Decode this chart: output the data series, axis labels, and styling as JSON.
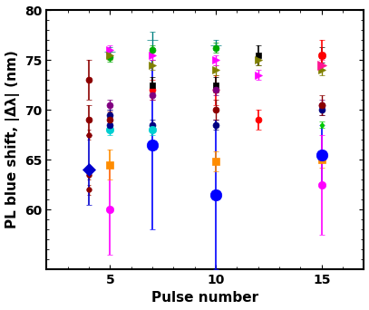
{
  "title": "",
  "xlabel": "Pulse number",
  "ylabel": "PL blue shift, |Δλ| (nm)",
  "xlim": [
    2,
    17
  ],
  "ylim": [
    54,
    80
  ],
  "yticks": [
    60,
    65,
    70,
    75,
    80
  ],
  "xticks": [
    5,
    10,
    15
  ],
  "series": [
    {
      "label": "darkred_col1_top",
      "x": [
        4
      ],
      "y": [
        73.0
      ],
      "yerr": [
        2.0
      ],
      "color": "#8B0000",
      "marker": "o",
      "ms": 5,
      "elinewidth": 1.2,
      "capsize": 2
    },
    {
      "label": "darkred_col1_mid",
      "x": [
        4
      ],
      "y": [
        69.0
      ],
      "yerr": [
        1.5
      ],
      "color": "#8B0000",
      "marker": "o",
      "ms": 5,
      "elinewidth": 1.2,
      "capsize": 2
    },
    {
      "label": "darkred_col1_low1",
      "x": [
        4
      ],
      "y": [
        67.5
      ],
      "yerr": [
        0.5
      ],
      "color": "#8B0000",
      "marker": "o",
      "ms": 4,
      "elinewidth": 1.0,
      "capsize": 1.5
    },
    {
      "label": "darkred_col1_low2",
      "x": [
        4
      ],
      "y": [
        63.5
      ],
      "yerr": [
        0.5
      ],
      "color": "#8B0000",
      "marker": "o",
      "ms": 4,
      "elinewidth": 1.0,
      "capsize": 1.5
    },
    {
      "label": "darkred_col1_low3",
      "x": [
        4
      ],
      "y": [
        62.0
      ],
      "yerr": [
        0.5
      ],
      "color": "#8B0000",
      "marker": "o",
      "ms": 4,
      "elinewidth": 1.0,
      "capsize": 1.5
    },
    {
      "label": "blue_diamond_col1",
      "x": [
        4
      ],
      "y": [
        64.0
      ],
      "yerr": [
        3.5
      ],
      "color": "#0000CD",
      "marker": "D",
      "ms": 7,
      "elinewidth": 1.2,
      "capsize": 2
    },
    {
      "label": "magenta_big_circle_col2",
      "x": [
        5
      ],
      "y": [
        60.0
      ],
      "yerr": [
        4.5
      ],
      "color": "#FF00FF",
      "marker": "o",
      "ms": 6,
      "elinewidth": 1.2,
      "capsize": 2
    },
    {
      "label": "orange_square_col2",
      "x": [
        5
      ],
      "y": [
        64.5
      ],
      "yerr": [
        1.5
      ],
      "color": "#FF8C00",
      "marker": "s",
      "ms": 6,
      "elinewidth": 1.2,
      "capsize": 2
    },
    {
      "label": "teal_plus_col2",
      "x": [
        5
      ],
      "y": [
        75.8
      ],
      "yerr": [
        0.5
      ],
      "color": "#008080",
      "marker": "+",
      "ms": 8,
      "elinewidth": 1.0,
      "capsize": 2
    },
    {
      "label": "green_circle_col2",
      "x": [
        5
      ],
      "y": [
        75.3
      ],
      "yerr": [
        0.5
      ],
      "color": "#00AA00",
      "marker": "o",
      "ms": 5,
      "elinewidth": 1.0,
      "capsize": 2
    },
    {
      "label": "magenta_tri_col2",
      "x": [
        5
      ],
      "y": [
        76.0
      ],
      "yerr": [
        0.5
      ],
      "color": "#FF00FF",
      "marker": ">",
      "ms": 6,
      "elinewidth": 1.0,
      "capsize": 2
    },
    {
      "label": "olive_tri_col2",
      "x": [
        5
      ],
      "y": [
        75.5
      ],
      "yerr": [
        0.5
      ],
      "color": "#808000",
      "marker": ">",
      "ms": 6,
      "elinewidth": 1.0,
      "capsize": 2
    },
    {
      "label": "purple_circle_col2",
      "x": [
        5
      ],
      "y": [
        70.5
      ],
      "yerr": [
        0.5
      ],
      "color": "#800080",
      "marker": "o",
      "ms": 5,
      "elinewidth": 1.0,
      "capsize": 2
    },
    {
      "label": "navy_circle_col2",
      "x": [
        5
      ],
      "y": [
        69.5
      ],
      "yerr": [
        0.5
      ],
      "color": "#000080",
      "marker": "o",
      "ms": 5,
      "elinewidth": 1.0,
      "capsize": 2
    },
    {
      "label": "cyan_circle_col2",
      "x": [
        5
      ],
      "y": [
        68.0
      ],
      "yerr": [
        0.5
      ],
      "color": "#00CED1",
      "marker": "o",
      "ms": 6,
      "elinewidth": 1.0,
      "capsize": 2
    },
    {
      "label": "darkblue_circle_col2",
      "x": [
        5
      ],
      "y": [
        68.5
      ],
      "yerr": [
        0.5
      ],
      "color": "#00008B",
      "marker": "o",
      "ms": 5,
      "elinewidth": 1.0,
      "capsize": 2
    },
    {
      "label": "darkred_circle_col2",
      "x": [
        5
      ],
      "y": [
        69.0
      ],
      "yerr": [
        0.8
      ],
      "color": "#8B0000",
      "marker": "o",
      "ms": 5,
      "elinewidth": 1.0,
      "capsize": 2
    },
    {
      "label": "blue_big_circle_col3",
      "x": [
        7
      ],
      "y": [
        66.5
      ],
      "yerr": [
        8.5
      ],
      "color": "#0000FF",
      "marker": "o",
      "ms": 9,
      "elinewidth": 1.2,
      "capsize": 2
    },
    {
      "label": "red_circle_col3",
      "x": [
        7
      ],
      "y": [
        72.0
      ],
      "yerr": [
        1.0
      ],
      "color": "#FF0000",
      "marker": "o",
      "ms": 5,
      "elinewidth": 1.2,
      "capsize": 2
    },
    {
      "label": "black_sq_col3",
      "x": [
        7
      ],
      "y": [
        72.5
      ],
      "yerr": [
        0.8
      ],
      "color": "#000000",
      "marker": "s",
      "ms": 5,
      "elinewidth": 1.2,
      "capsize": 2
    },
    {
      "label": "olive_tri_col3",
      "x": [
        7
      ],
      "y": [
        74.5
      ],
      "yerr": [
        0.5
      ],
      "color": "#808000",
      "marker": ">",
      "ms": 6,
      "elinewidth": 1.0,
      "capsize": 2
    },
    {
      "label": "magenta_tri_col3",
      "x": [
        7
      ],
      "y": [
        75.5
      ],
      "yerr": [
        0.5
      ],
      "color": "#FF00FF",
      "marker": ">",
      "ms": 6,
      "elinewidth": 1.0,
      "capsize": 2
    },
    {
      "label": "teal_plus_col3",
      "x": [
        7
      ],
      "y": [
        77.0
      ],
      "yerr": [
        0.8
      ],
      "color": "#008080",
      "marker": "+",
      "ms": 8,
      "elinewidth": 1.0,
      "capsize": 2
    },
    {
      "label": "green_circle_col3",
      "x": [
        7
      ],
      "y": [
        76.0
      ],
      "yerr": [
        0.5
      ],
      "color": "#00AA00",
      "marker": "o",
      "ms": 5,
      "elinewidth": 1.0,
      "capsize": 2
    },
    {
      "label": "purple_circle_col3",
      "x": [
        7
      ],
      "y": [
        71.5
      ],
      "yerr": [
        0.5
      ],
      "color": "#800080",
      "marker": "o",
      "ms": 5,
      "elinewidth": 1.0,
      "capsize": 2
    },
    {
      "label": "navy_circle_col3",
      "x": [
        7
      ],
      "y": [
        68.5
      ],
      "yerr": [
        0.5
      ],
      "color": "#000080",
      "marker": "o",
      "ms": 5,
      "elinewidth": 1.0,
      "capsize": 2
    },
    {
      "label": "cyan_circle_col3",
      "x": [
        7
      ],
      "y": [
        68.0
      ],
      "yerr": [
        0.5
      ],
      "color": "#00CED1",
      "marker": "o",
      "ms": 6,
      "elinewidth": 1.0,
      "capsize": 2
    },
    {
      "label": "blue_big_col4",
      "x": [
        10
      ],
      "y": [
        61.5
      ],
      "yerr": [
        7.5
      ],
      "color": "#0000FF",
      "marker": "o",
      "ms": 9,
      "elinewidth": 1.2,
      "capsize": 2
    },
    {
      "label": "red_circle_col4",
      "x": [
        10
      ],
      "y": [
        72.0
      ],
      "yerr": [
        1.5
      ],
      "color": "#FF0000",
      "marker": "o",
      "ms": 5,
      "elinewidth": 1.2,
      "capsize": 2
    },
    {
      "label": "black_sq_col4",
      "x": [
        10
      ],
      "y": [
        72.5
      ],
      "yerr": [
        0.8
      ],
      "color": "#000000",
      "marker": "s",
      "ms": 5,
      "elinewidth": 1.2,
      "capsize": 2
    },
    {
      "label": "olive_tri_col4",
      "x": [
        10
      ],
      "y": [
        74.0
      ],
      "yerr": [
        0.5
      ],
      "color": "#808000",
      "marker": ">",
      "ms": 6,
      "elinewidth": 1.0,
      "capsize": 2
    },
    {
      "label": "magenta_tri_col4",
      "x": [
        10
      ],
      "y": [
        75.0
      ],
      "yerr": [
        0.5
      ],
      "color": "#FF00FF",
      "marker": ">",
      "ms": 6,
      "elinewidth": 1.0,
      "capsize": 2
    },
    {
      "label": "teal_plus_col4",
      "x": [
        10
      ],
      "y": [
        76.5
      ],
      "yerr": [
        0.5
      ],
      "color": "#008080",
      "marker": "+",
      "ms": 8,
      "elinewidth": 1.0,
      "capsize": 2
    },
    {
      "label": "green_circle_col4",
      "x": [
        10
      ],
      "y": [
        76.2
      ],
      "yerr": [
        0.5
      ],
      "color": "#00AA00",
      "marker": "o",
      "ms": 5,
      "elinewidth": 1.0,
      "capsize": 2
    },
    {
      "label": "purple_circle_col4",
      "x": [
        10
      ],
      "y": [
        72.0
      ],
      "yerr": [
        0.5
      ],
      "color": "#800080",
      "marker": "o",
      "ms": 5,
      "elinewidth": 1.0,
      "capsize": 2
    },
    {
      "label": "navy_circle_col4",
      "x": [
        10
      ],
      "y": [
        68.5
      ],
      "yerr": [
        0.5
      ],
      "color": "#000080",
      "marker": "o",
      "ms": 5,
      "elinewidth": 1.0,
      "capsize": 2
    },
    {
      "label": "orange_sq_col4",
      "x": [
        10
      ],
      "y": [
        64.8
      ],
      "yerr": [
        1.0
      ],
      "color": "#FF8C00",
      "marker": "s",
      "ms": 6,
      "elinewidth": 1.2,
      "capsize": 2
    },
    {
      "label": "darkred_col4",
      "x": [
        10
      ],
      "y": [
        70.0
      ],
      "yerr": [
        1.0
      ],
      "color": "#8B0000",
      "marker": "o",
      "ms": 5,
      "elinewidth": 1.0,
      "capsize": 2
    },
    {
      "label": "black_sq_col5",
      "x": [
        12
      ],
      "y": [
        75.5
      ],
      "yerr": [
        1.0
      ],
      "color": "#000000",
      "marker": "s",
      "ms": 5,
      "elinewidth": 1.2,
      "capsize": 2
    },
    {
      "label": "olive_tri_col5",
      "x": [
        12
      ],
      "y": [
        75.0
      ],
      "yerr": [
        0.5
      ],
      "color": "#808000",
      "marker": ">",
      "ms": 6,
      "elinewidth": 1.0,
      "capsize": 2
    },
    {
      "label": "magenta_tri_col5",
      "x": [
        12
      ],
      "y": [
        73.5
      ],
      "yerr": [
        0.5
      ],
      "color": "#FF00FF",
      "marker": ">",
      "ms": 6,
      "elinewidth": 1.0,
      "capsize": 2
    },
    {
      "label": "red_circle_col5",
      "x": [
        12
      ],
      "y": [
        69.0
      ],
      "yerr": [
        1.0
      ],
      "color": "#FF0000",
      "marker": "o",
      "ms": 5,
      "elinewidth": 1.2,
      "capsize": 2
    },
    {
      "label": "black_sq_col6",
      "x": [
        15
      ],
      "y": [
        75.5
      ],
      "yerr": [
        0.8
      ],
      "color": "#000000",
      "marker": "s",
      "ms": 5,
      "elinewidth": 1.2,
      "capsize": 2
    },
    {
      "label": "olive_tri_col6",
      "x": [
        15
      ],
      "y": [
        74.0
      ],
      "yerr": [
        0.5
      ],
      "color": "#808000",
      "marker": ">",
      "ms": 6,
      "elinewidth": 1.0,
      "capsize": 2
    },
    {
      "label": "magenta_tri_col6",
      "x": [
        15
      ],
      "y": [
        74.5
      ],
      "yerr": [
        0.5
      ],
      "color": "#FF1493",
      "marker": ">",
      "ms": 7,
      "elinewidth": 1.0,
      "capsize": 2
    },
    {
      "label": "red_circle_col6",
      "x": [
        15
      ],
      "y": [
        75.5
      ],
      "yerr": [
        1.5
      ],
      "color": "#FF0000",
      "marker": "o",
      "ms": 6,
      "elinewidth": 1.2,
      "capsize": 2
    },
    {
      "label": "purple_circle_col6",
      "x": [
        15
      ],
      "y": [
        70.5
      ],
      "yerr": [
        0.5
      ],
      "color": "#800080",
      "marker": "o",
      "ms": 5,
      "elinewidth": 1.0,
      "capsize": 2
    },
    {
      "label": "navy_circle_col6",
      "x": [
        15
      ],
      "y": [
        70.0
      ],
      "yerr": [
        0.5
      ],
      "color": "#000080",
      "marker": "o",
      "ms": 5,
      "elinewidth": 1.0,
      "capsize": 2
    },
    {
      "label": "orange_sq_col6",
      "x": [
        15
      ],
      "y": [
        65.0
      ],
      "yerr": [
        0.8
      ],
      "color": "#FF8C00",
      "marker": "s",
      "ms": 6,
      "elinewidth": 1.2,
      "capsize": 2
    },
    {
      "label": "darkred_col6",
      "x": [
        15
      ],
      "y": [
        70.5
      ],
      "yerr": [
        1.0
      ],
      "color": "#8B0000",
      "marker": "o",
      "ms": 5,
      "elinewidth": 1.0,
      "capsize": 2
    },
    {
      "label": "blue_big_col6",
      "x": [
        15
      ],
      "y": [
        65.5
      ],
      "yerr": [
        3.0
      ],
      "color": "#0000FF",
      "marker": "o",
      "ms": 9,
      "elinewidth": 1.2,
      "capsize": 2
    },
    {
      "label": "magenta_circle_col6",
      "x": [
        15
      ],
      "y": [
        62.5
      ],
      "yerr": [
        5.0
      ],
      "color": "#FF00FF",
      "marker": "o",
      "ms": 6,
      "elinewidth": 1.2,
      "capsize": 2
    },
    {
      "label": "green_short_col6",
      "x": [
        15
      ],
      "y": [
        68.5
      ],
      "yerr": [
        0.3
      ],
      "color": "#00CC00",
      "marker": "o",
      "ms": 3,
      "elinewidth": 1.0,
      "capsize": 2
    }
  ],
  "background_color": "#ffffff",
  "axis_color": "#000000",
  "grid": false,
  "tick_fontsize": 10,
  "label_fontsize": 11,
  "label_fontweight": "bold"
}
